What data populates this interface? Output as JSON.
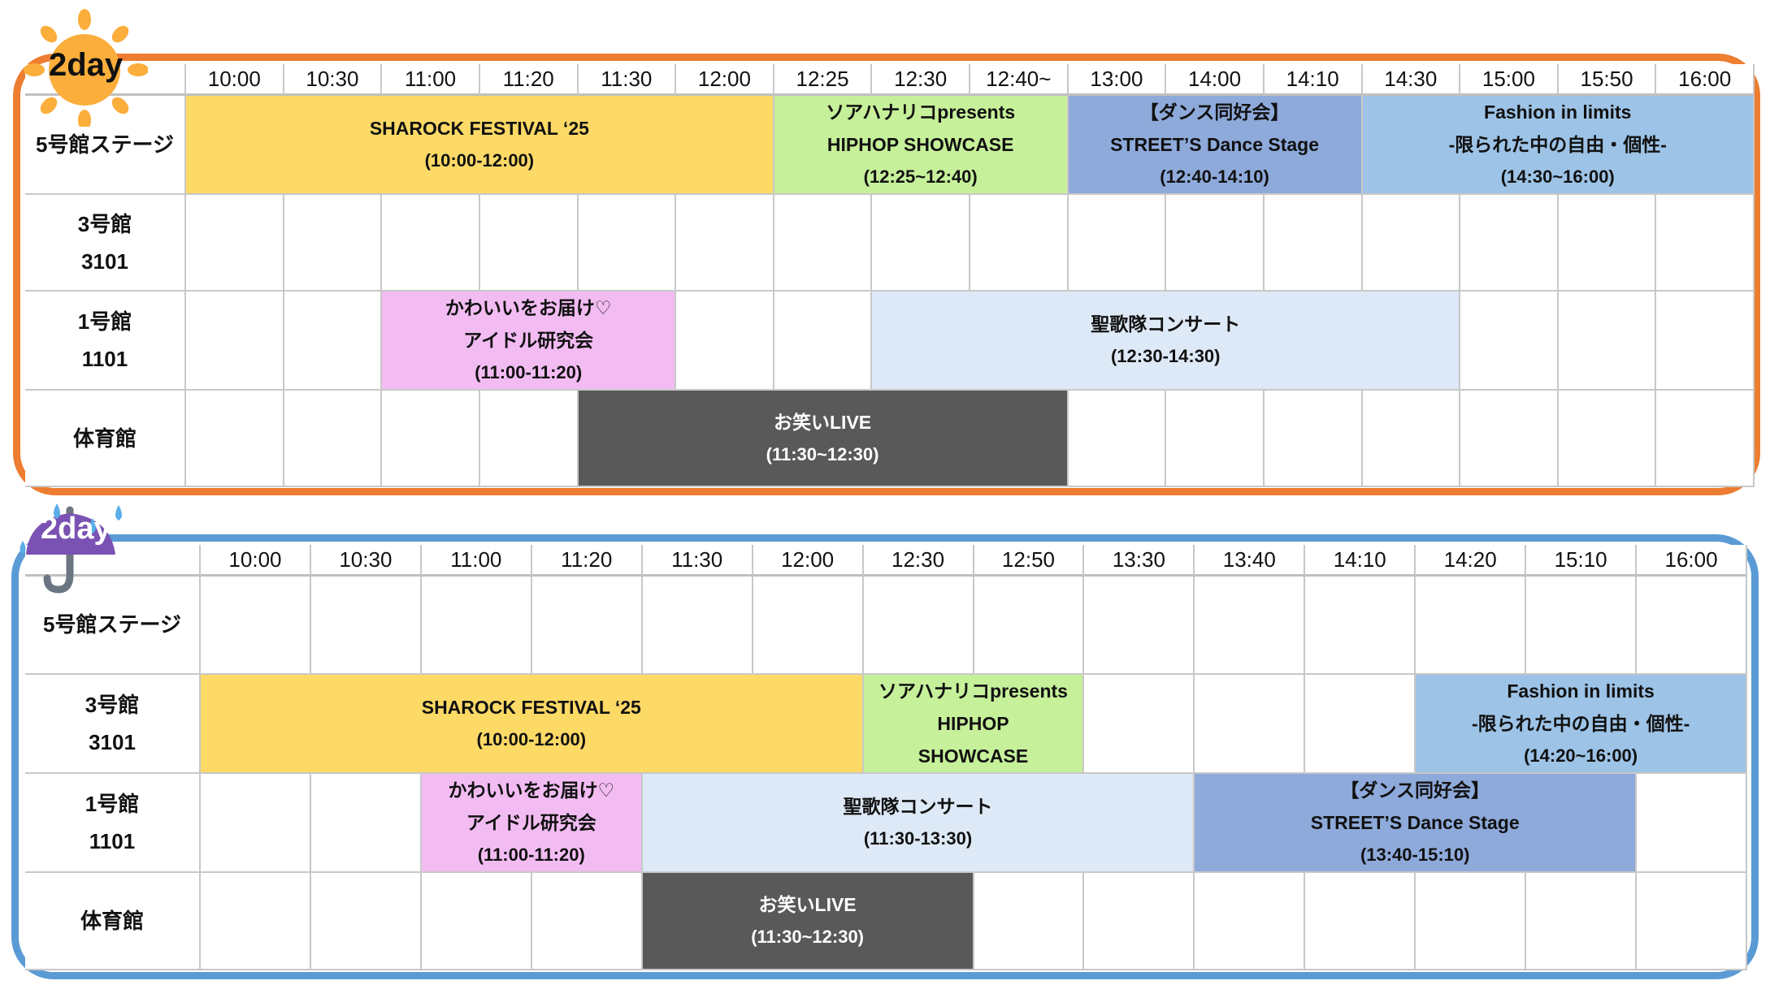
{
  "colors": {
    "day1_frame": "#ed7d31",
    "day2_frame": "#5b9bd5",
    "sharock": "#fdd966",
    "hiphop": "#c6f09a",
    "dance": "#8eaadb",
    "fashion": "#9dc3e6",
    "idol": "#f2bcf2",
    "choir": "#dde9f6",
    "comedy": "#595959"
  },
  "schedules": [
    {
      "badge": {
        "label": "2day",
        "icon": "sun-icon"
      },
      "times": [
        "10:00",
        "10:30",
        "11:00",
        "11:20",
        "11:30",
        "12:00",
        "12:25",
        "12:30",
        "12:40~",
        "13:00",
        "14:00",
        "14:10",
        "14:30",
        "15:00",
        "15:50",
        "16:00"
      ],
      "venues": [
        [
          "5号館ステージ"
        ],
        [
          "3号館",
          "3101"
        ],
        [
          "1号館",
          "1101"
        ],
        [
          "体育館"
        ]
      ],
      "events": [
        {
          "venue": 0,
          "start": "10:00",
          "end": "12:25",
          "lines": [
            "SHAROCK FESTIVAL ‘25",
            "(10:00-12:00)"
          ],
          "color": "#fdd966",
          "text_color": "#111"
        },
        {
          "venue": 0,
          "start": "12:25",
          "end": "13:00",
          "lines": [
            "ソアハナリコpresents",
            "HIPHOP SHOWCASE",
            "(12:25~12:40)"
          ],
          "color": "#c6f09a",
          "text_color": "#111"
        },
        {
          "venue": 0,
          "start": "13:00",
          "end": "14:30",
          "lines": [
            "【ダンス同好会】",
            "STREET’S Dance Stage",
            "(12:40-14:10)"
          ],
          "color": "#8eaadb",
          "text_color": "#111"
        },
        {
          "venue": 0,
          "start": "14:30",
          "end": "",
          "lines": [
            "Fashion in limits",
            "-限られた中の自由・個性-",
            "(14:30~16:00)"
          ],
          "color": "#9dc3e6",
          "text_color": "#111"
        },
        {
          "venue": 2,
          "start": "11:00",
          "end": "12:00",
          "lines": [
            "かわいいをお届け♡",
            "アイドル研究会",
            "(11:00-11:20)"
          ],
          "color": "#f2bcf2",
          "text_color": "#111"
        },
        {
          "venue": 2,
          "start": "12:30",
          "end": "15:00",
          "lines": [
            "聖歌隊コンサート",
            "(12:30-14:30)"
          ],
          "color": "#dde9f6",
          "text_color": "#111"
        },
        {
          "venue": 3,
          "start": "11:30",
          "end": "13:00",
          "lines": [
            "お笑いLIVE",
            "(11:30~12:30)"
          ],
          "color": "#595959",
          "text_color": "#ffffff"
        }
      ]
    },
    {
      "badge": {
        "label": "2day",
        "icon": "umbrella-rain-icon"
      },
      "times": [
        "10:00",
        "10:30",
        "11:00",
        "11:20",
        "11:30",
        "12:00",
        "12:30",
        "12:50",
        "13:30",
        "13:40",
        "14:10",
        "14:20",
        "15:10",
        "16:00"
      ],
      "venues": [
        [
          "5号館ステージ"
        ],
        [
          "3号館",
          "3101"
        ],
        [
          "1号館",
          "1101"
        ],
        [
          "体育館"
        ]
      ],
      "events": [
        {
          "venue": 1,
          "start": "10:00",
          "end": "12:30",
          "lines": [
            "SHAROCK FESTIVAL ‘25",
            "(10:00-12:00)"
          ],
          "color": "#fdd966",
          "text_color": "#111"
        },
        {
          "venue": 1,
          "start": "12:30",
          "end": "13:30",
          "lines": [
            "ソアハナリコpresents",
            "HIPHOP",
            "SHOWCASE"
          ],
          "color": "#c6f09a",
          "text_color": "#111"
        },
        {
          "venue": 1,
          "start": "14:20",
          "end": "",
          "lines": [
            "Fashion in limits",
            "-限られた中の自由・個性-",
            "(14:20~16:00)"
          ],
          "color": "#9dc3e6",
          "text_color": "#111"
        },
        {
          "venue": 2,
          "start": "11:00",
          "end": "11:30",
          "lines": [
            "かわいいをお届け♡",
            "アイドル研究会",
            "(11:00-11:20)"
          ],
          "color": "#f2bcf2",
          "text_color": "#111"
        },
        {
          "venue": 2,
          "start": "11:30",
          "end": "13:40",
          "lines": [
            "聖歌隊コンサート",
            "(11:30-13:30)"
          ],
          "color": "#dde9f6",
          "text_color": "#111"
        },
        {
          "venue": 2,
          "start": "13:40",
          "end": "16:00",
          "lines": [
            "【ダンス同好会】",
            "STREET’S Dance Stage",
            "(13:40-15:10)"
          ],
          "color": "#8eaadb",
          "text_color": "#111"
        },
        {
          "venue": 3,
          "start": "11:30",
          "end": "12:50",
          "lines": [
            "お笑いLIVE",
            "(11:30~12:30)"
          ],
          "color": "#595959",
          "text_color": "#ffffff"
        }
      ]
    }
  ]
}
